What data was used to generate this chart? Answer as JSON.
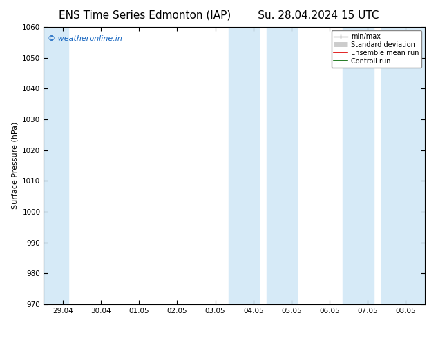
{
  "title_left": "ENS Time Series Edmonton (IAP)",
  "title_right": "Su. 28.04.2024 15 UTC",
  "ylabel": "Surface Pressure (hPa)",
  "ylim": [
    970,
    1060
  ],
  "yticks": [
    970,
    980,
    990,
    1000,
    1010,
    1020,
    1030,
    1040,
    1050,
    1060
  ],
  "xtick_labels": [
    "29.04",
    "30.04",
    "01.05",
    "02.05",
    "03.05",
    "04.05",
    "05.05",
    "06.05",
    "07.05",
    "08.05"
  ],
  "x_num": [
    0,
    1,
    2,
    3,
    4,
    5,
    6,
    7,
    8,
    9
  ],
  "xlim": [
    -0.5,
    9.5
  ],
  "shaded_bands": [
    {
      "x_start": -0.5,
      "x_end": 0.15,
      "color": "#d6eaf7"
    },
    {
      "x_start": 4.35,
      "x_end": 5.15,
      "color": "#d6eaf7"
    },
    {
      "x_start": 5.35,
      "x_end": 6.15,
      "color": "#d6eaf7"
    },
    {
      "x_start": 7.35,
      "x_end": 8.15,
      "color": "#d6eaf7"
    },
    {
      "x_start": 8.35,
      "x_end": 9.5,
      "color": "#d6eaf7"
    }
  ],
  "watermark_text": "© weatheronline.in",
  "watermark_color": "#1565c0",
  "legend_entries": [
    {
      "label": "min/max",
      "color": "#999999",
      "lw": 1.0
    },
    {
      "label": "Standard deviation",
      "color": "#cccccc",
      "lw": 5
    },
    {
      "label": "Ensemble mean run",
      "color": "#dd0000",
      "lw": 1.2
    },
    {
      "label": "Controll run",
      "color": "#006600",
      "lw": 1.2
    }
  ],
  "bg_color": "#ffffff",
  "title_fontsize": 11,
  "axis_label_fontsize": 8,
  "tick_fontsize": 7.5
}
